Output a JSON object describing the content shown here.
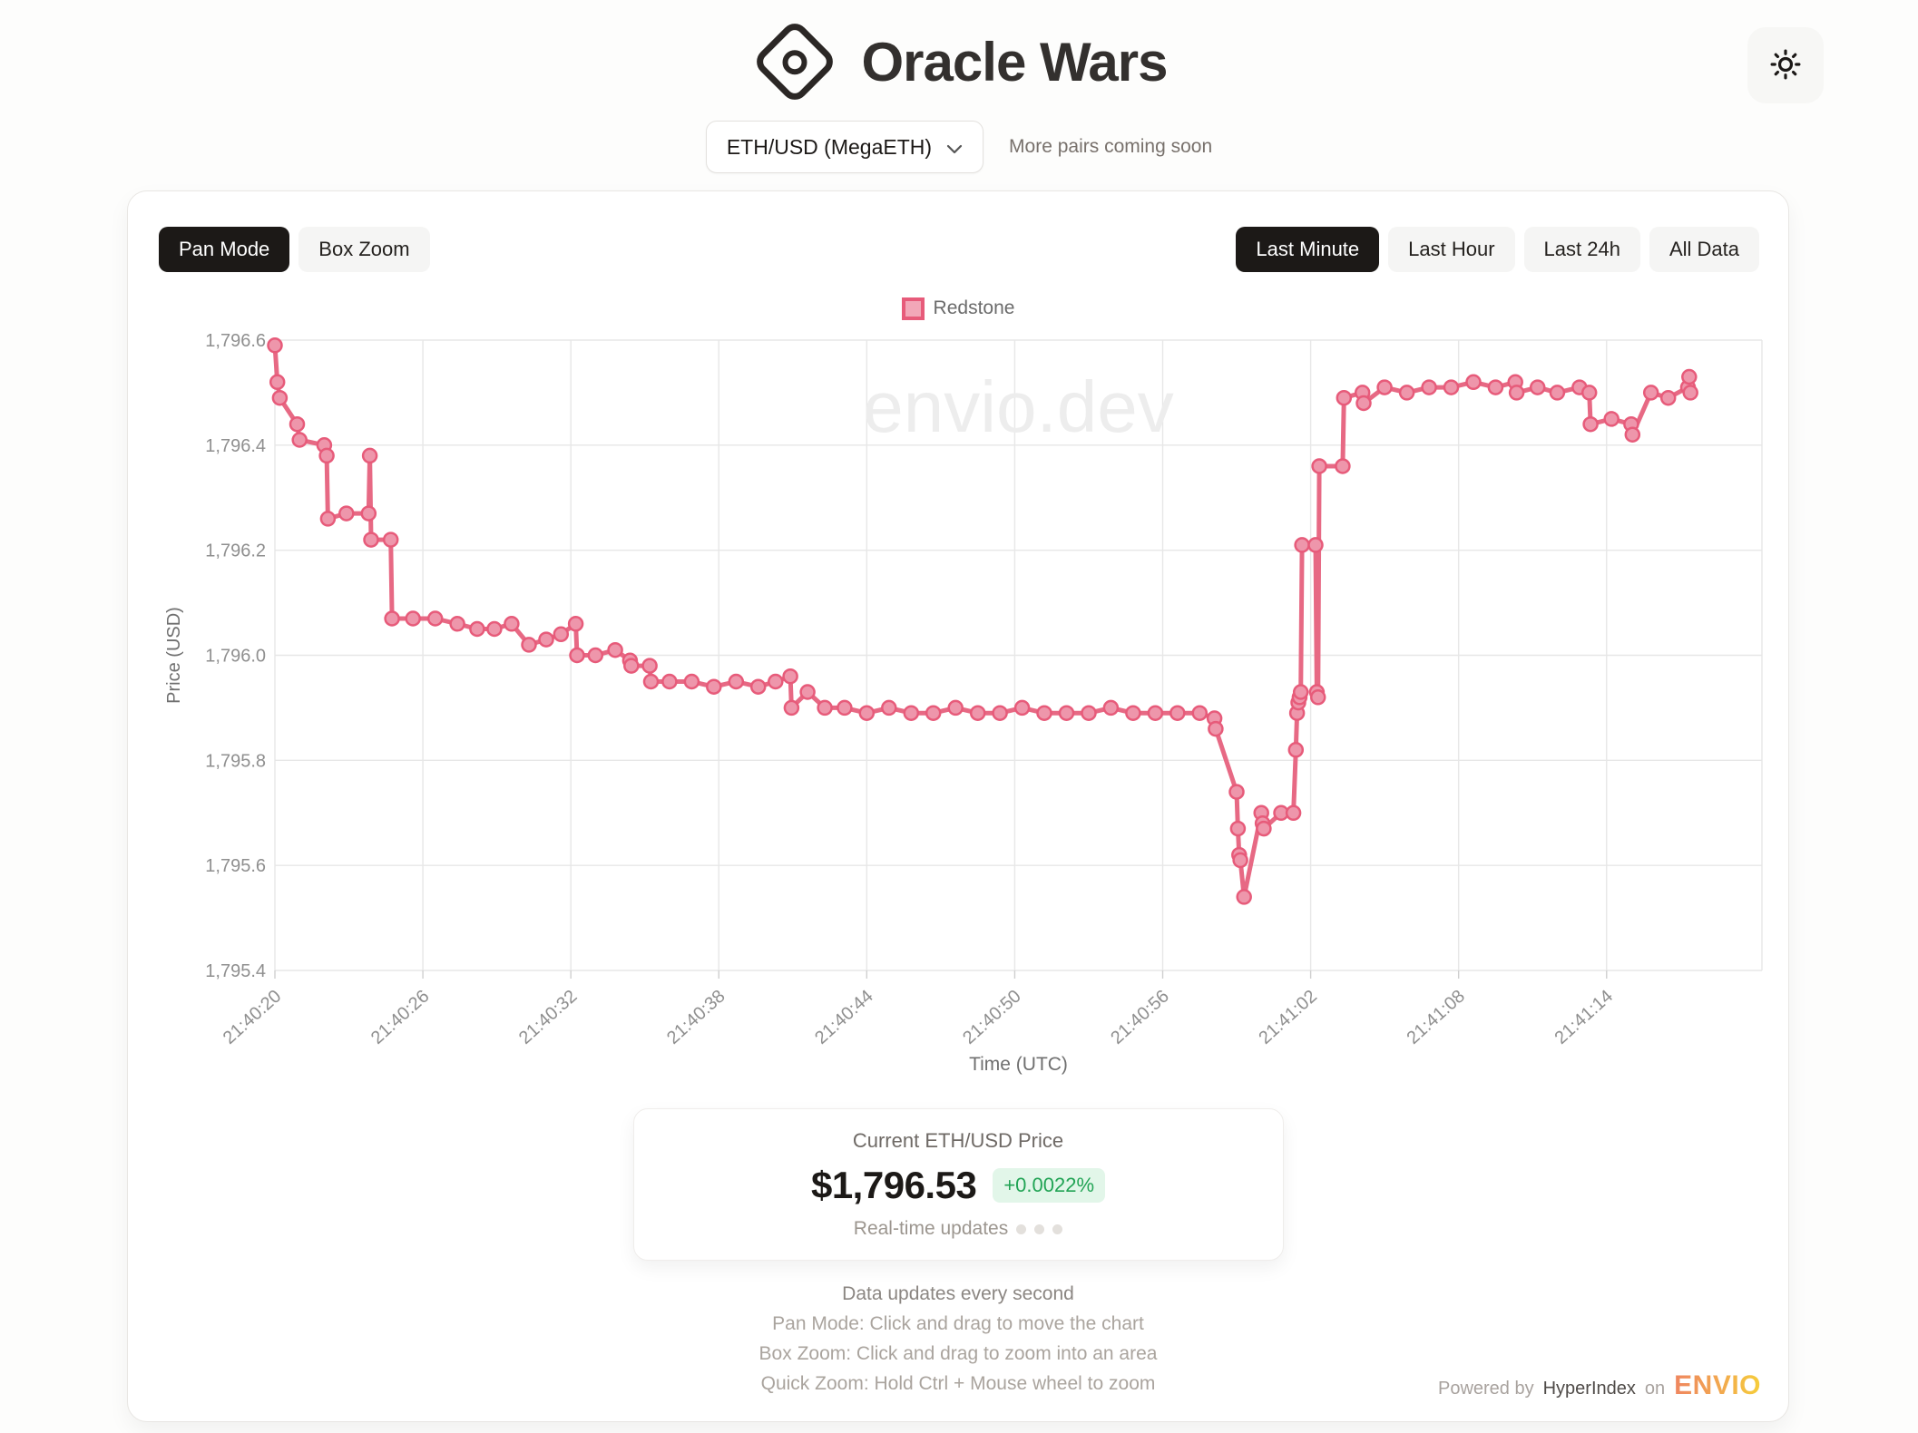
{
  "header": {
    "title": "Oracle Wars",
    "theme_icon": "sun-icon"
  },
  "pair_selector": {
    "selected": "ETH/USD (MegaETH)",
    "note": "More pairs coming soon"
  },
  "toolbar": {
    "modes": [
      {
        "label": "Pan Mode",
        "active": true
      },
      {
        "label": "Box Zoom",
        "active": false
      }
    ],
    "ranges": [
      {
        "label": "Last Minute",
        "active": true
      },
      {
        "label": "Last Hour",
        "active": false
      },
      {
        "label": "Last 24h",
        "active": false
      },
      {
        "label": "All Data",
        "active": false
      }
    ]
  },
  "chart_data": {
    "type": "line",
    "legend": [
      {
        "label": "Redstone",
        "box_fill": "#F2A7B8",
        "box_border": "#E75B7A"
      }
    ],
    "xlabel": "Time (UTC)",
    "ylabel": "Price (USD)",
    "watermark": "envio.dev",
    "grid": true,
    "legend_position": "top-center",
    "ylim": [
      1795.4,
      1796.6
    ],
    "y_ticks": [
      {
        "label": "1,795.4",
        "value": 1795.4
      },
      {
        "label": "1,795.6",
        "value": 1795.6
      },
      {
        "label": "1,795.8",
        "value": 1795.8
      },
      {
        "label": "1,796.0",
        "value": 1796.0
      },
      {
        "label": "1,796.2",
        "value": 1796.2
      },
      {
        "label": "1,796.4",
        "value": 1796.4
      },
      {
        "label": "1,796.6",
        "value": 1796.6
      }
    ],
    "x_range_seconds": [
      0,
      60.3
    ],
    "x_ticks": [
      {
        "label": "21:40:20",
        "offset_s": 0
      },
      {
        "label": "21:40:26",
        "offset_s": 6
      },
      {
        "label": "21:40:32",
        "offset_s": 12
      },
      {
        "label": "21:40:38",
        "offset_s": 18
      },
      {
        "label": "21:40:44",
        "offset_s": 24
      },
      {
        "label": "21:40:50",
        "offset_s": 30
      },
      {
        "label": "21:40:56",
        "offset_s": 36
      },
      {
        "label": "21:41:02",
        "offset_s": 42
      },
      {
        "label": "21:41:08",
        "offset_s": 48
      },
      {
        "label": "21:41:14",
        "offset_s": 54
      }
    ],
    "series": [
      {
        "name": "Redstone",
        "line_color": "#E76984",
        "point_fill": "#EE96AB",
        "point_border": "#E75B7A",
        "points": [
          [
            0,
            1796.59
          ],
          [
            0.1,
            1796.52
          ],
          [
            0.2,
            1796.49
          ],
          [
            0.9,
            1796.44
          ],
          [
            1,
            1796.41
          ],
          [
            2,
            1796.4
          ],
          [
            2.1,
            1796.38
          ],
          [
            2.15,
            1796.26
          ],
          [
            2.9,
            1796.27
          ],
          [
            3.8,
            1796.27
          ],
          [
            3.85,
            1796.38
          ],
          [
            3.9,
            1796.22
          ],
          [
            4.7,
            1796.22
          ],
          [
            4.75,
            1796.07
          ],
          [
            5.6,
            1796.07
          ],
          [
            6.5,
            1796.07
          ],
          [
            7.4,
            1796.06
          ],
          [
            8.2,
            1796.05
          ],
          [
            8.9,
            1796.05
          ],
          [
            9.6,
            1796.06
          ],
          [
            10.3,
            1796.02
          ],
          [
            11,
            1796.03
          ],
          [
            11.6,
            1796.04
          ],
          [
            12.2,
            1796.06
          ],
          [
            12.25,
            1796.0
          ],
          [
            13,
            1796.0
          ],
          [
            13.8,
            1796.01
          ],
          [
            14.4,
            1795.99
          ],
          [
            14.45,
            1795.98
          ],
          [
            15.2,
            1795.98
          ],
          [
            15.25,
            1795.95
          ],
          [
            16,
            1795.95
          ],
          [
            16.9,
            1795.95
          ],
          [
            17.8,
            1795.94
          ],
          [
            18.7,
            1795.95
          ],
          [
            19.6,
            1795.94
          ],
          [
            20.3,
            1795.95
          ],
          [
            20.9,
            1795.96
          ],
          [
            20.95,
            1795.9
          ],
          [
            21.6,
            1795.93
          ],
          [
            22.3,
            1795.9
          ],
          [
            23.1,
            1795.9
          ],
          [
            24,
            1795.89
          ],
          [
            24.9,
            1795.9
          ],
          [
            25.8,
            1795.89
          ],
          [
            26.7,
            1795.89
          ],
          [
            27.6,
            1795.9
          ],
          [
            28.5,
            1795.89
          ],
          [
            29.4,
            1795.89
          ],
          [
            30.3,
            1795.9
          ],
          [
            31.2,
            1795.89
          ],
          [
            32.1,
            1795.89
          ],
          [
            33,
            1795.89
          ],
          [
            33.9,
            1795.9
          ],
          [
            34.8,
            1795.89
          ],
          [
            35.7,
            1795.89
          ],
          [
            36.6,
            1795.89
          ],
          [
            37.5,
            1795.89
          ],
          [
            38.1,
            1795.88
          ],
          [
            38.15,
            1795.86
          ],
          [
            39,
            1795.74
          ],
          [
            39.05,
            1795.67
          ],
          [
            39.1,
            1795.62
          ],
          [
            39.15,
            1795.61
          ],
          [
            39.3,
            1795.54
          ],
          [
            40,
            1795.7
          ],
          [
            40.05,
            1795.68
          ],
          [
            40.1,
            1795.67
          ],
          [
            40.8,
            1795.7
          ],
          [
            41.3,
            1795.7
          ],
          [
            41.4,
            1795.82
          ],
          [
            41.45,
            1795.89
          ],
          [
            41.5,
            1795.91
          ],
          [
            41.55,
            1795.92
          ],
          [
            41.6,
            1795.93
          ],
          [
            41.65,
            1796.21
          ],
          [
            42.2,
            1796.21
          ],
          [
            42.25,
            1795.93
          ],
          [
            42.3,
            1795.92
          ],
          [
            42.35,
            1796.36
          ],
          [
            43.3,
            1796.36
          ],
          [
            43.35,
            1796.49
          ],
          [
            44.1,
            1796.5
          ],
          [
            44.15,
            1796.48
          ],
          [
            45,
            1796.51
          ],
          [
            45.9,
            1796.5
          ],
          [
            46.8,
            1796.51
          ],
          [
            47.7,
            1796.51
          ],
          [
            48.6,
            1796.52
          ],
          [
            49.5,
            1796.51
          ],
          [
            50.3,
            1796.52
          ],
          [
            50.35,
            1796.5
          ],
          [
            51.2,
            1796.51
          ],
          [
            52,
            1796.5
          ],
          [
            52.9,
            1796.51
          ],
          [
            53.3,
            1796.5
          ],
          [
            53.35,
            1796.44
          ],
          [
            54.2,
            1796.45
          ],
          [
            55,
            1796.44
          ],
          [
            55.05,
            1796.42
          ],
          [
            55.8,
            1796.5
          ],
          [
            56.5,
            1796.49
          ],
          [
            57.3,
            1796.51
          ],
          [
            57.35,
            1796.53
          ],
          [
            57.4,
            1796.5
          ]
        ]
      }
    ]
  },
  "price_card": {
    "title": "Current ETH/USD Price",
    "price": "$1,796.53",
    "change": "+0.0022%",
    "realtime_label": "Real-time updates"
  },
  "footer": {
    "line1": "Data updates every second",
    "line2": "Pan Mode: Click and drag to move the chart",
    "line3": "Box Zoom: Click and drag to zoom into an area",
    "line4": "Quick Zoom: Hold Ctrl + Mouse wheel to zoom"
  },
  "powered_by": {
    "prefix": "Powered by",
    "brand": "HyperIndex",
    "conjunction": "on",
    "platform": "ENVIO"
  },
  "colors": {
    "accent_line": "#E76984",
    "active_button_bg": "#1c1917",
    "positive_green": "#22a455",
    "positive_green_bg": "#e2f6e9",
    "envio_gradient_start": "#ef8660",
    "envio_gradient_end": "#f6ce3a"
  }
}
